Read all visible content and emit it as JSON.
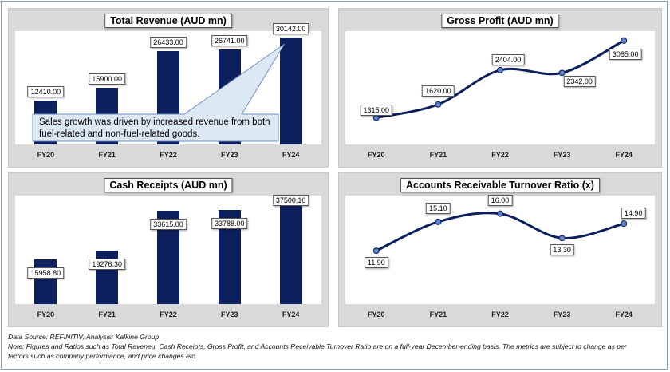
{
  "chart_data": [
    {
      "id": "revenue",
      "type": "bar",
      "title": "Total Revenue (AUD mn)",
      "categories": [
        "FY20",
        "FY21",
        "FY22",
        "FY23",
        "FY24"
      ],
      "values": [
        12410.0,
        15900.0,
        26433.0,
        26741.0,
        30142.0
      ],
      "labels": [
        "12410.00",
        "15900.00",
        "26433.00",
        "26741.00",
        "30142.00"
      ],
      "ylim": [
        0,
        32000
      ],
      "annotation": "Sales growth was driven by increased revenue from both fuel-related and non-fuel-related goods."
    },
    {
      "id": "gross",
      "type": "line",
      "title": "Gross Profit (AUD mn)",
      "categories": [
        "FY20",
        "FY21",
        "FY22",
        "FY23",
        "FY24"
      ],
      "values": [
        1315.0,
        1620.0,
        2404.0,
        2342.0,
        3085.0
      ],
      "labels": [
        "1315.00",
        "1620.00",
        "2404.00",
        "2342.00",
        "3085.00"
      ],
      "ylim": [
        700,
        3300
      ]
    },
    {
      "id": "cash",
      "type": "bar",
      "title": "Cash Receipts (AUD mn)",
      "categories": [
        "FY20",
        "FY21",
        "FY22",
        "FY23",
        "FY24"
      ],
      "values": [
        15958.8,
        19276.3,
        33615.0,
        33788.0,
        37500.1
      ],
      "labels": [
        "15958.80",
        "19276.30",
        "33615.00",
        "33788.00",
        "37500.10"
      ],
      "ylim": [
        0,
        39000
      ]
    },
    {
      "id": "ar",
      "type": "line",
      "title": "Accounts Receivable Turnover Ratio (x)",
      "categories": [
        "FY20",
        "FY21",
        "FY22",
        "FY23",
        "FY24"
      ],
      "values": [
        11.9,
        15.1,
        16.0,
        13.3,
        14.9
      ],
      "labels": [
        "11.90",
        "15.10",
        "16.00",
        "13.30",
        "14.90"
      ],
      "ylim": [
        6,
        18
      ]
    }
  ],
  "colors": {
    "bar": "#0d1f5c",
    "line": "#0d1f5c",
    "marker": "#5b7fc7",
    "panel_bg": "#d9d9d9",
    "callout_bg": "#dde8f5",
    "callout_border": "#6a8dc2"
  },
  "footer": {
    "source": "Data Source: REFINITIV, Analysis: Kalkine Group",
    "note_line1": "Note: Figures and Ratios such as Total Reveneu, Cash Receipts, Gross Profit, and  Accounts Receivable Turnover Ratio are on a full-year December-ending basis. The metrics are subject to change as per",
    "note_line2": "factors such as company performance, and price changes etc."
  }
}
